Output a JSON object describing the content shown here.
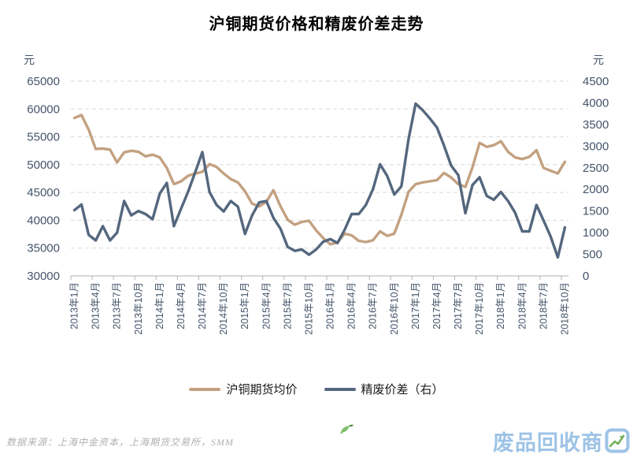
{
  "chart_data": {
    "type": "line",
    "title": "沪铜期货价格和精废价差走势",
    "grid": "horizontal-dashed",
    "legend_position": "bottom",
    "x_tick_labels": [
      "2013年1月",
      "2013年4月",
      "2013年7月",
      "2013年10月",
      "2014年1月",
      "2014年4月",
      "2014年7月",
      "2014年10月",
      "2015年1月",
      "2015年4月",
      "2015年7月",
      "2015年10月",
      "2016年1月",
      "2016年4月",
      "2016年7月",
      "2016年10月",
      "2017年1月",
      "2017年4月",
      "2017年7月",
      "2017年10月",
      "2018年1月",
      "2018年4月",
      "2018年7月",
      "2018年10月"
    ],
    "months_per_tick": 3,
    "points_total": 70,
    "left_axis": {
      "unit": "元",
      "min": 30000,
      "max": 65000,
      "tick_step": 5000,
      "ticks": [
        65000,
        60000,
        55000,
        50000,
        45000,
        40000,
        35000,
        30000
      ]
    },
    "right_axis": {
      "unit": "元",
      "min": 0,
      "max": 4500,
      "tick_step": 500,
      "ticks": [
        4500,
        4000,
        3500,
        3000,
        2500,
        2000,
        1500,
        1000,
        500,
        0
      ]
    },
    "series": [
      {
        "name": "沪铜期货均价",
        "axis": "left",
        "color": "#C3A181",
        "values": [
          58400,
          58900,
          56300,
          52800,
          52900,
          52700,
          50400,
          52200,
          52500,
          52300,
          51500,
          51800,
          51300,
          49400,
          46500,
          47000,
          48000,
          48400,
          48700,
          50100,
          49600,
          48400,
          47400,
          46800,
          45200,
          43000,
          42500,
          43300,
          45400,
          42500,
          40100,
          39200,
          39700,
          39900,
          38200,
          36800,
          35700,
          36000,
          37600,
          37300,
          36300,
          36100,
          36400,
          38000,
          37200,
          37600,
          41000,
          45100,
          46500,
          46800,
          47000,
          47200,
          48500,
          47700,
          46500,
          46000,
          49500,
          53900,
          53200,
          53500,
          54200,
          52300,
          51300,
          51000,
          51400,
          52600,
          49400,
          48900,
          48400,
          50500
        ]
      },
      {
        "name": "精废价差（右）",
        "axis": "right",
        "color": "#54677E",
        "values": [
          1520,
          1650,
          950,
          820,
          1150,
          820,
          1000,
          1730,
          1400,
          1500,
          1430,
          1310,
          1900,
          2150,
          1150,
          1550,
          1950,
          2400,
          2860,
          1940,
          1640,
          1490,
          1730,
          1600,
          970,
          1400,
          1700,
          1730,
          1340,
          1090,
          670,
          580,
          610,
          490,
          610,
          790,
          850,
          760,
          1060,
          1430,
          1430,
          1640,
          2000,
          2580,
          2310,
          1880,
          2070,
          3160,
          3980,
          3830,
          3640,
          3430,
          3010,
          2550,
          2330,
          1450,
          2100,
          2280,
          1850,
          1760,
          1940,
          1730,
          1460,
          1030,
          1030,
          1640,
          1280,
          910,
          430,
          1120
        ]
      }
    ],
    "colors": {
      "gridline": "#D9D9D9",
      "axis_line": "#BFBFBF",
      "axis_text": "#44546A"
    }
  },
  "source_note": "数据来源：上海中金资本，上海期货交易所，SMM",
  "watermark": {
    "text": "废品回收商",
    "stylized_char": "网",
    "color": "#9DC3E6",
    "leaf_color": "#7FBF6B",
    "arrow_color": "#6FAE5C"
  }
}
